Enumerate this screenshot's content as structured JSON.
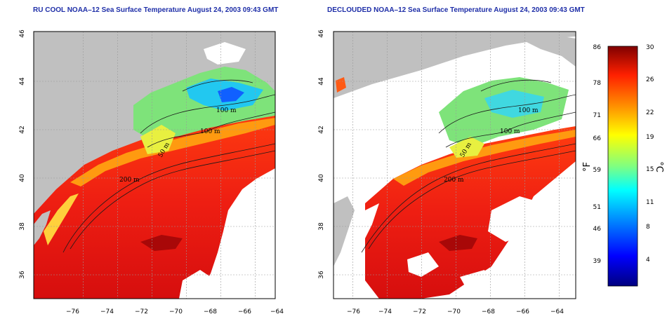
{
  "panels": [
    {
      "title": "RU COOL NOAA–12 Sea Surface Temperature August 24, 2003 09:43 GMT"
    },
    {
      "title": "DECLOUDED NOAA–12 Sea Surface Temperature August 24, 2003 09:43 GMT"
    }
  ],
  "axes": {
    "lon_ticks": [
      "−76",
      "−74",
      "−72",
      "−70",
      "−68",
      "−66",
      "−64"
    ],
    "lat_ticks": [
      "36",
      "38",
      "40",
      "42",
      "44",
      "46"
    ],
    "lon_range": [
      -77,
      -63
    ],
    "lat_range": [
      35,
      46
    ],
    "grid": "dotted"
  },
  "contour_labels": [
    "100 m",
    "100 m",
    "50 m",
    "200 m",
    "50 m",
    "200 m"
  ],
  "colorbar": {
    "fahrenheit_unit": "°F",
    "celsius_unit": "°C",
    "fahrenheit_ticks": [
      "86",
      "78",
      "71",
      "66",
      "59",
      "51",
      "46",
      "39"
    ],
    "celsius_ticks": [
      "30",
      "26",
      "22",
      "19",
      "15",
      "11",
      "8",
      "4"
    ],
    "range_c": [
      0,
      30
    ],
    "colors": [
      "#00007f",
      "#0000ff",
      "#00a0ff",
      "#00ffff",
      "#80ff80",
      "#ffff00",
      "#ff9000",
      "#ff2000",
      "#7f0000"
    ]
  },
  "legend_colors": {
    "land": "#c0c0c0",
    "cloud": "#ffffff"
  }
}
